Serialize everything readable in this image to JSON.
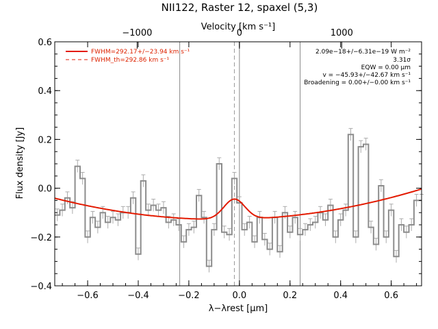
{
  "colors": {
    "data": "#8c8c8c",
    "fit": "#e31a00",
    "frame": "#000000"
  },
  "chart_data": {
    "type": "line",
    "title": "NII122, Raster 12, spaxel (5,3)",
    "xlabel": "λ−λrest [μm]",
    "ylabel": "Flux density [Jy]",
    "x2label": "Velocity [km s⁻¹]",
    "xlim": [
      -0.73,
      0.72
    ],
    "ylim": [
      -0.4,
      0.6
    ],
    "xticks": [
      "−0.6",
      "−0.4",
      "−0.2",
      "0.0",
      "0.2",
      "0.4",
      "0.6"
    ],
    "xtick_values": [
      -0.6,
      -0.4,
      -0.2,
      0.0,
      0.2,
      0.4,
      0.6
    ],
    "yticks": [
      "−0.4",
      "−0.2",
      "0.0",
      "0.2",
      "0.4",
      "0.6"
    ],
    "ytick_values": [
      -0.4,
      -0.2,
      0.0,
      0.2,
      0.4,
      0.6
    ],
    "x2ticks": [
      "−1000",
      "0",
      "1000"
    ],
    "x2tick_values": [
      -0.4043,
      0.0,
      0.4043
    ],
    "vlines_solid": [
      -0.236,
      0.0,
      0.24
    ],
    "vline_dashed": -0.02,
    "annotations": [
      "2.09e−18+/−6.31e−19 W m⁻²",
      "3.31σ",
      "EQW = 0.00 μm",
      "v = −45.93+/−42.67 km s⁻¹",
      "Broadening = 0.00+/−0.00 km s⁻¹"
    ],
    "legend": [
      {
        "label": "FWHM=292.17+/−23.94 km s⁻¹",
        "style": "solid"
      },
      {
        "label": "FWHM_th=292.86 km s⁻¹",
        "style": "dashed"
      }
    ],
    "series": [
      {
        "name": "spectrum",
        "style": "step",
        "x": [
          -0.72,
          -0.7,
          -0.68,
          -0.66,
          -0.64,
          -0.62,
          -0.6,
          -0.58,
          -0.56,
          -0.54,
          -0.52,
          -0.5,
          -0.48,
          -0.46,
          -0.44,
          -0.42,
          -0.4,
          -0.38,
          -0.36,
          -0.34,
          -0.32,
          -0.3,
          -0.28,
          -0.26,
          -0.24,
          -0.22,
          -0.2,
          -0.18,
          -0.16,
          -0.14,
          -0.12,
          -0.1,
          -0.08,
          -0.06,
          -0.04,
          -0.02,
          0.0,
          0.02,
          0.04,
          0.06,
          0.08,
          0.1,
          0.12,
          0.14,
          0.16,
          0.18,
          0.2,
          0.22,
          0.24,
          0.26,
          0.28,
          0.3,
          0.32,
          0.34,
          0.36,
          0.38,
          0.4,
          0.42,
          0.44,
          0.46,
          0.48,
          0.5,
          0.52,
          0.54,
          0.56,
          0.58,
          0.6,
          0.62,
          0.64,
          0.66,
          0.68,
          0.7,
          0.72
        ],
        "y": [
          -0.11,
          -0.09,
          -0.04,
          -0.08,
          0.09,
          0.04,
          -0.2,
          -0.12,
          -0.16,
          -0.1,
          -0.14,
          -0.12,
          -0.13,
          -0.1,
          -0.1,
          -0.04,
          -0.27,
          0.03,
          -0.09,
          -0.07,
          -0.09,
          -0.08,
          -0.14,
          -0.13,
          -0.15,
          -0.22,
          -0.17,
          -0.16,
          -0.03,
          -0.12,
          -0.32,
          -0.17,
          0.1,
          -0.18,
          -0.19,
          0.04,
          -0.06,
          -0.17,
          -0.14,
          -0.22,
          -0.12,
          -0.21,
          -0.25,
          -0.12,
          -0.26,
          -0.1,
          -0.18,
          -0.12,
          -0.19,
          -0.17,
          -0.15,
          -0.14,
          -0.1,
          -0.13,
          -0.07,
          -0.2,
          -0.13,
          -0.09,
          0.22,
          -0.2,
          0.17,
          0.18,
          -0.16,
          -0.23,
          0.01,
          -0.2,
          -0.09,
          -0.28,
          -0.15,
          -0.18,
          -0.15,
          -0.05,
          -0.05
        ],
        "err": 0.025
      },
      {
        "name": "fit",
        "style": "line",
        "params": {
          "center": -0.02,
          "peak_above_base": 0.083,
          "sigma": 0.042,
          "base_a": -0.128,
          "base_c": 0.2,
          "base_x0": -0.07
        }
      }
    ]
  }
}
